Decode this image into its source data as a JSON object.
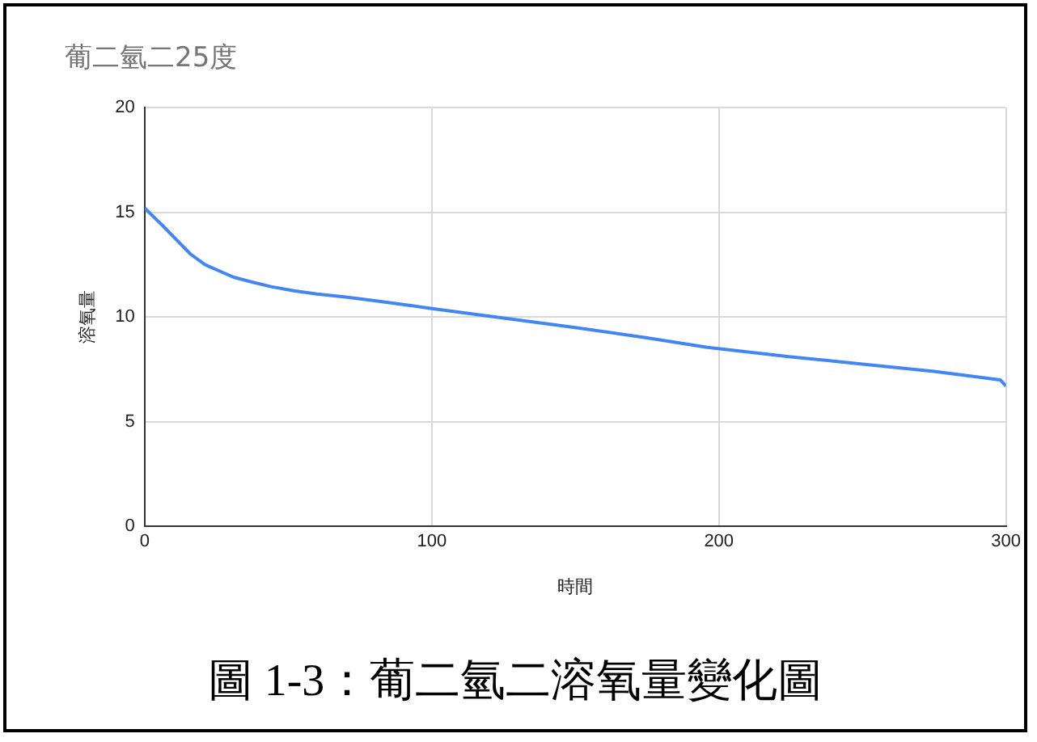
{
  "chart_data": {
    "type": "line",
    "title": "葡二氫二25度",
    "xlabel": "時間",
    "ylabel": "溶氧量",
    "x": [
      0,
      3,
      6,
      11,
      16,
      21,
      26,
      31,
      38,
      44,
      52,
      60,
      70,
      79,
      90,
      100,
      125,
      150,
      175,
      196,
      225,
      250,
      275,
      298,
      300
    ],
    "series": [
      {
        "color": "#4285f4",
        "values": [
          15.2,
          14.8,
          14.4,
          13.7,
          13.0,
          12.5,
          12.2,
          11.9,
          11.65,
          11.45,
          11.25,
          11.1,
          10.95,
          10.8,
          10.6,
          10.4,
          9.95,
          9.5,
          9.0,
          8.55,
          8.1,
          7.75,
          7.4,
          7.0,
          6.7
        ]
      }
    ],
    "xlim": [
      0,
      300
    ],
    "xticks": [
      0,
      100,
      200,
      300
    ],
    "ylim": [
      0,
      20
    ],
    "yticks": [
      0,
      5,
      10,
      15,
      20
    ],
    "grid": true,
    "legend": false,
    "marker": "none",
    "line_style": "solid",
    "annotations": [
      "圖 1-3：葡二氫二溶氧量變化圖"
    ]
  }
}
